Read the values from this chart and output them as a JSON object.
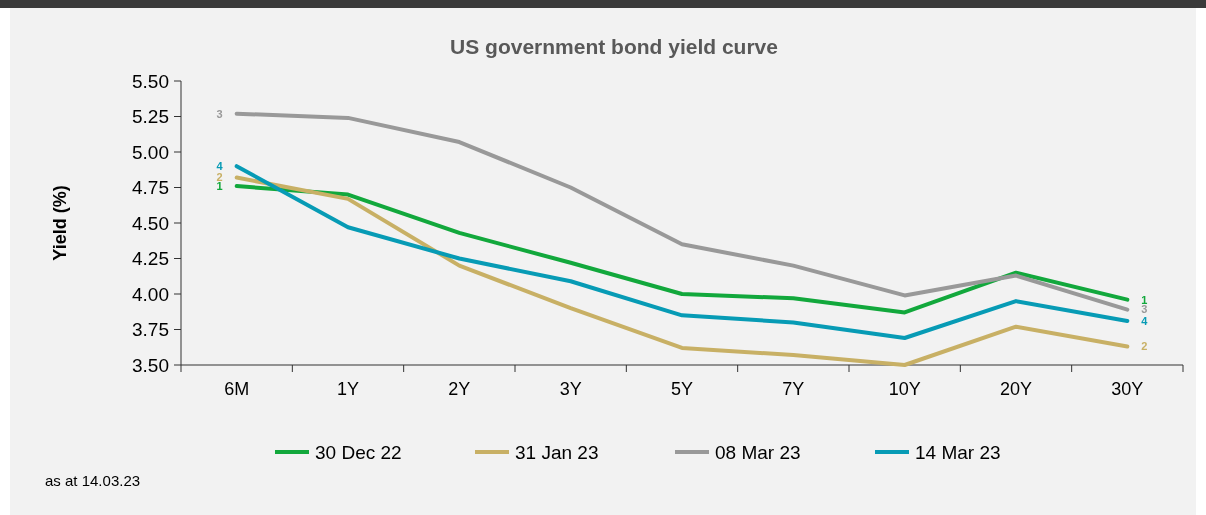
{
  "chart_data": {
    "type": "line",
    "title": "US government bond yield curve",
    "ylabel": "Yield (%)",
    "categories": [
      "6M",
      "1Y",
      "2Y",
      "3Y",
      "5Y",
      "7Y",
      "10Y",
      "20Y",
      "30Y"
    ],
    "ylim": [
      3.5,
      5.5
    ],
    "yticks": [
      {
        "value": 3.5,
        "label": "3.50"
      },
      {
        "value": 3.75,
        "label": "3.75"
      },
      {
        "value": 4,
        "label": "4.00"
      },
      {
        "value": 4.25,
        "label": "4.25"
      },
      {
        "value": 4.5,
        "label": "4.50"
      },
      {
        "value": 4.75,
        "label": "4.75"
      },
      {
        "value": 5,
        "label": "5.00"
      },
      {
        "value": 5.25,
        "label": "5.25"
      },
      {
        "value": 5.5,
        "label": "5.50"
      }
    ],
    "grid": false,
    "legend": "bottom",
    "marker": "none",
    "line_style": "solid",
    "series": [
      {
        "name": "30 Dec 22",
        "color": "#12a83c",
        "values": [
          4.76,
          4.7,
          4.43,
          4.22,
          4.0,
          3.97,
          3.87,
          4.15,
          3.96
        ]
      },
      {
        "name": "31 Jan 23",
        "color": "#c8b065",
        "values": [
          4.82,
          4.67,
          4.2,
          3.9,
          3.62,
          3.57,
          3.5,
          3.77,
          3.63
        ]
      },
      {
        "name": "08 Mar 23",
        "color": "#999999",
        "values": [
          5.27,
          5.24,
          5.07,
          4.75,
          4.35,
          4.2,
          3.99,
          4.13,
          3.89
        ]
      },
      {
        "name": "14 Mar 23",
        "color": "#079bb5",
        "values": [
          4.9,
          4.47,
          4.25,
          4.09,
          3.85,
          3.8,
          3.69,
          3.95,
          3.81
        ]
      }
    ],
    "annotations": [
      {
        "text": "1",
        "x": "6M",
        "y": 4.76
      },
      {
        "text": "2",
        "x": "6M",
        "y": 4.82
      },
      {
        "text": "3",
        "x": "6M",
        "y": 5.27
      },
      {
        "text": "4",
        "x": "6M",
        "y": 4.9
      },
      {
        "text": "1",
        "x": "30Y",
        "y": 3.96
      },
      {
        "text": "2",
        "x": "30Y",
        "y": 3.63
      },
      {
        "text": "3",
        "x": "30Y",
        "y": 3.89
      },
      {
        "text": "4",
        "x": "30Y",
        "y": 3.81
      },
      "as at 14.03.23"
    ]
  }
}
